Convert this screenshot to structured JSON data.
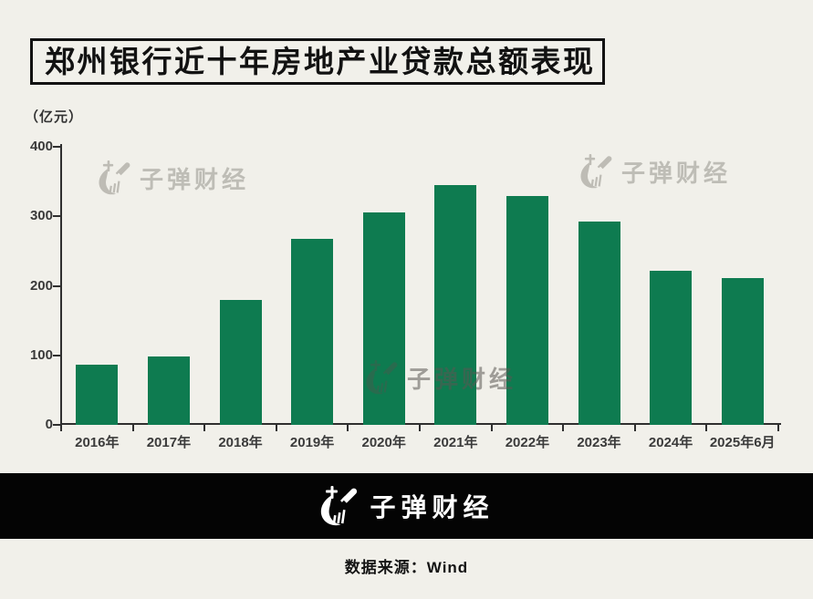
{
  "page": {
    "title": "郑州银行近十年房地产业贷款总额表现",
    "unit_label": "（亿元）",
    "source": "数据来源：Wind"
  },
  "watermark": {
    "brand": "子弹财经"
  },
  "footer": {
    "brand": "子弹财经"
  },
  "colors": {
    "background": "#f1f0ea",
    "bar": "#0e7b50",
    "axis": "#2f2f2f",
    "footer_bg": "#040404",
    "watermark_gray": "rgba(108,106,98,0.38)"
  },
  "chart_data": {
    "type": "bar",
    "title": "郑州银行近十年房地产业贷款总额表现",
    "unit": "亿元",
    "categories": [
      "2016年",
      "2017年",
      "2018年",
      "2019年",
      "2020年",
      "2021年",
      "2022年",
      "2023年",
      "2024年",
      "2025年6月"
    ],
    "values": [
      87,
      99,
      180,
      267,
      306,
      345,
      329,
      292,
      222,
      211
    ],
    "xlabel": "",
    "ylabel": "亿元",
    "ylim": [
      0,
      400
    ],
    "yticks": [
      0,
      100,
      200,
      300,
      400
    ],
    "grid": false,
    "legend_position": "none",
    "bar_color": "#0e7b50"
  }
}
